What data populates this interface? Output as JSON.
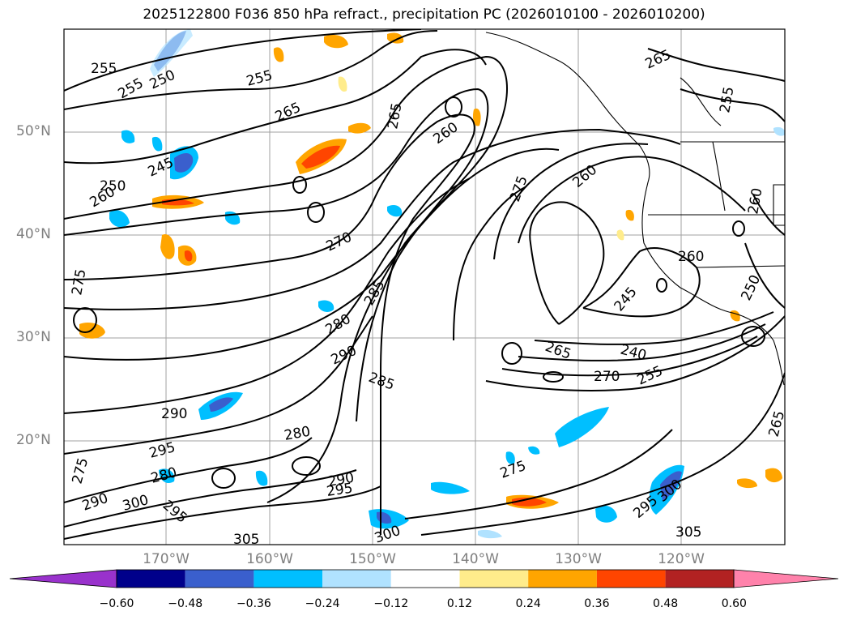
{
  "title": "2025122800 F036 850 hPa refract., precipitation PC (2026010100 - 2026010200)",
  "map": {
    "lat_labels": [
      "50°N",
      "40°N",
      "30°N",
      "20°N"
    ],
    "lon_labels": [
      "170°W",
      "160°W",
      "150°W",
      "140°W",
      "130°W",
      "120°W"
    ],
    "contour_labels": [
      "255",
      "255",
      "250",
      "255",
      "265",
      "265",
      "260",
      "265",
      "255",
      "245",
      "250",
      "260",
      "275",
      "260",
      "260",
      "270",
      "275",
      "250",
      "260",
      "280",
      "245",
      "285",
      "275",
      "290",
      "285",
      "265",
      "240",
      "270",
      "255",
      "290",
      "290",
      "280",
      "295",
      "295",
      "280",
      "275",
      "290",
      "295",
      "300",
      "300",
      "305",
      "295",
      "300",
      "305",
      "265"
    ]
  },
  "colorbar": {
    "ticks": [
      "−0.60",
      "−0.48",
      "−0.36",
      "−0.24",
      "−0.12",
      "0.12",
      "0.24",
      "0.36",
      "0.48",
      "0.60"
    ],
    "colors": [
      "#9932cc",
      "#00008b",
      "#3a5fcd",
      "#00bfff",
      "#b0e2ff",
      "#ffffff",
      "#ffec8b",
      "#ffa500",
      "#ff4500",
      "#b22222",
      "#ff82ab"
    ]
  }
}
